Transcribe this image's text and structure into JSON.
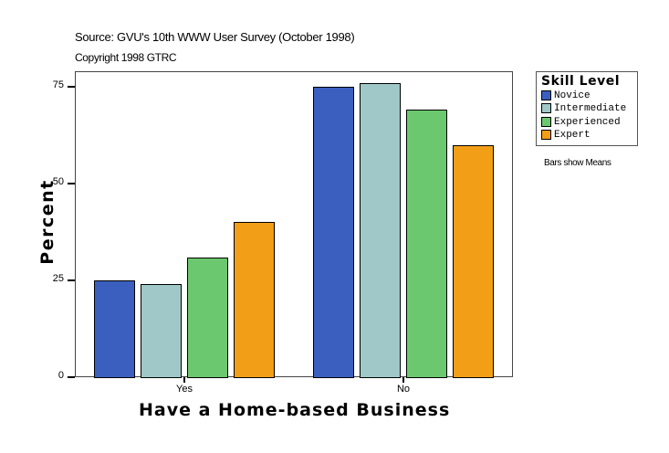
{
  "header": {
    "source": "Source: GVU's 10th WWW User Survey (October 1998)",
    "copyright": "Copyright 1998 GTRC"
  },
  "note": "Bars show Means",
  "colors": {
    "Novice": "#3a5fbf",
    "Intermediate": "#a0c8c8",
    "Experienced": "#6cc86e",
    "Expert": "#f29e17"
  },
  "chart_data": {
    "type": "bar",
    "title": "",
    "xlabel": "Have a Home-based Business",
    "ylabel": "Percent",
    "categories": [
      "Yes",
      "No"
    ],
    "series": [
      {
        "name": "Novice",
        "values": [
          25,
          75
        ]
      },
      {
        "name": "Intermediate",
        "values": [
          24,
          76
        ]
      },
      {
        "name": "Experienced",
        "values": [
          31,
          69
        ]
      },
      {
        "name": "Expert",
        "values": [
          40,
          60
        ]
      }
    ],
    "yticks": [
      "0",
      "25",
      "50",
      "75"
    ],
    "ylim": [
      0,
      79
    ],
    "grid": false,
    "legend": {
      "title": "Skill Level",
      "position": "right",
      "entries": [
        "Novice",
        "Intermediate",
        "Experienced",
        "Expert"
      ]
    },
    "annotations": [
      "Bars show Means"
    ]
  }
}
